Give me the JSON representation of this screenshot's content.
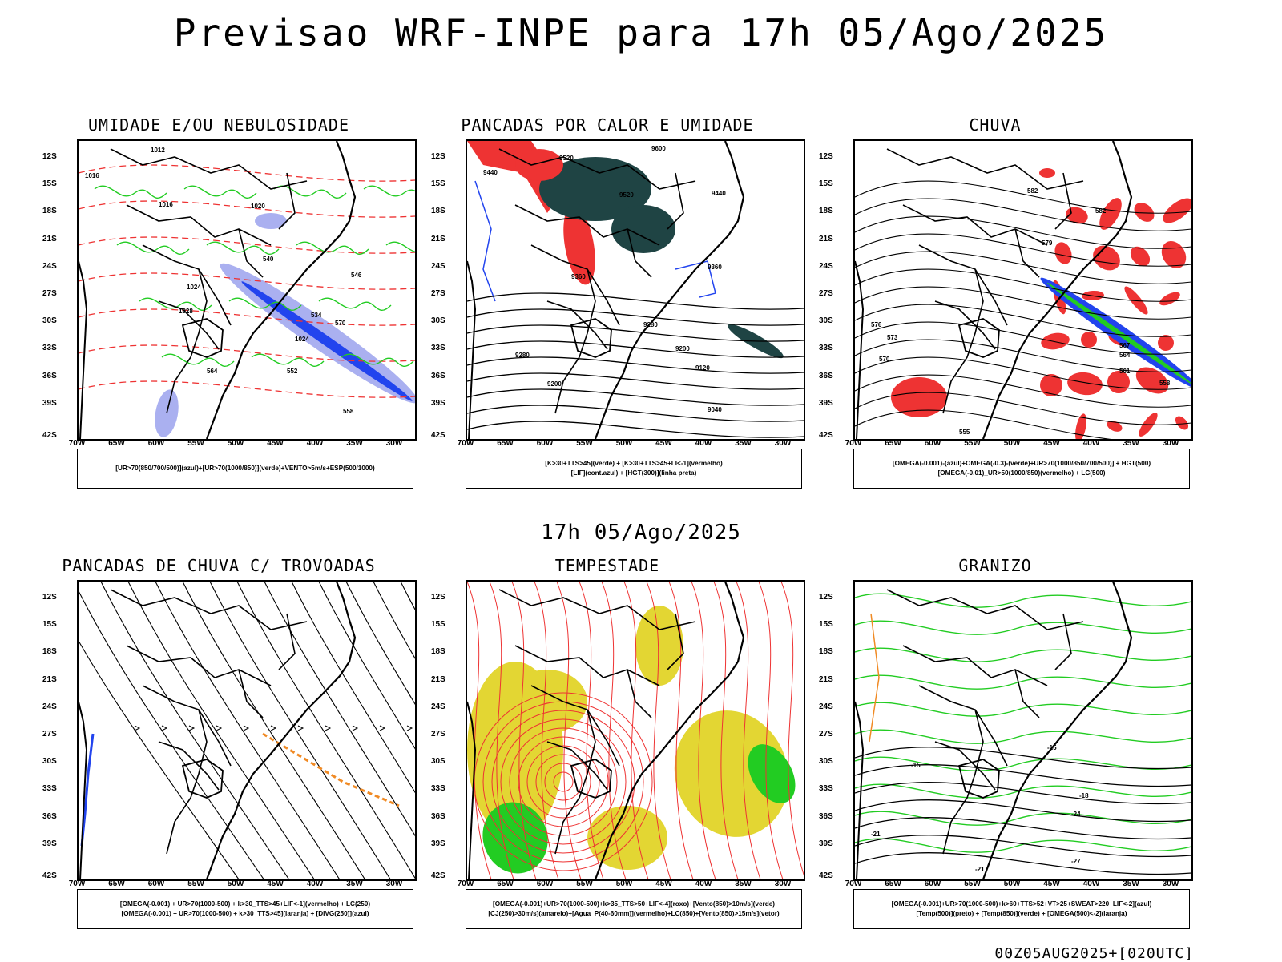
{
  "header": {
    "title": "Previsao WRF-INPE  para 17h 05/Ago/2025"
  },
  "mid_title": "17h 05/Ago/2025",
  "footer": "00Z05AUG2025+[020UTC]",
  "axes": {
    "lat_labels": [
      "12S",
      "15S",
      "18S",
      "21S",
      "24S",
      "27S",
      "30S",
      "33S",
      "36S",
      "39S",
      "42S"
    ],
    "lon_labels": [
      "70W",
      "65W",
      "60W",
      "55W",
      "50W",
      "45W",
      "40W",
      "35W",
      "30W"
    ]
  },
  "panels": [
    {
      "title": "UMIDADE E/OU NEBULOSIDADE",
      "legend": [
        "[UR>70(850/700/500)](azul)+[UR>70(1000/850)](verde)+VENTO>5m/s+ESP(500/1000)"
      ],
      "contour_labels": [
        "1012",
        "1016",
        "1016",
        "1020",
        "1024",
        "1028",
        "1024",
        "570",
        "564",
        "558",
        "552",
        "546",
        "540",
        "534"
      ]
    },
    {
      "title": "PANCADAS POR CALOR E UMIDADE",
      "legend": [
        "[K>30+TTS>45](verde) + [K>30+TTS>45+LI<-1](vermelho)",
        "[LIF](cont.azul) + [HGT(300)](linha preta)"
      ],
      "contour_labels": [
        "9600",
        "9520",
        "9520",
        "9440",
        "9440",
        "9360",
        "9360",
        "9280",
        "9280",
        "9200",
        "9200",
        "9120",
        "9040"
      ]
    },
    {
      "title": "CHUVA",
      "legend": [
        "[OMEGA(-0.001)-(azul)+OMEGA(-0.3)-(verde)+UR>70(1000/850/700/500)] + HGT(500)",
        "[OMEGA(-0.01)_UR>50(1000/850)(vermelho) + LC(500)"
      ],
      "contour_labels": [
        "582",
        "582",
        "579",
        "576",
        "573",
        "570",
        "567",
        "564",
        "561",
        "558",
        "555"
      ]
    },
    {
      "title": "PANCADAS DE CHUVA C/ TROVOADAS",
      "legend": [
        "[OMEGA(-0.001) + UR>70(1000-500) + k>30_TTS>45+LIF<-1](vermelho) + LC(250)",
        "[OMEGA(-0.001) + UR>70(1000-500) + k>30_TTS>45](laranja) + [DIVG(250)](azul)"
      ],
      "contour_labels": []
    },
    {
      "title": "TEMPESTADE",
      "legend": [
        "[OMEGA(-0.001)+UR>70(1000-500)+k>35_TTS>50+LIF<-4](roxo)+[Vento(850)>10m/s](verde)",
        "[CJ(250)>30m/s](amarelo)+[Agua_P(40-60mm)](vermelho)+LC(850)+[Vento(850)>15m/s](vetor)"
      ],
      "contour_labels": []
    },
    {
      "title": "GRANIZO",
      "legend": [
        "[OMEGA(-0.001)+UR>70(1000-500)+k>60+TTS>52+VT>25+SWEAT>220+LIF<-2](azul)",
        "[Temp(500)](preto) + [Temp(850)](verde) + [OMEGA(500)<-2](laranja)"
      ],
      "contour_labels": [
        "-15",
        "-15",
        "-18",
        "-21",
        "-24",
        "-27",
        "-21"
      ]
    }
  ],
  "colors": {
    "red": "#ee3333",
    "green": "#22cc22",
    "blue": "#2244ee",
    "lavender": "#aab0f0",
    "darkteal": "#1f4444",
    "yellow": "#e3d633",
    "orange": "#f08a24"
  }
}
